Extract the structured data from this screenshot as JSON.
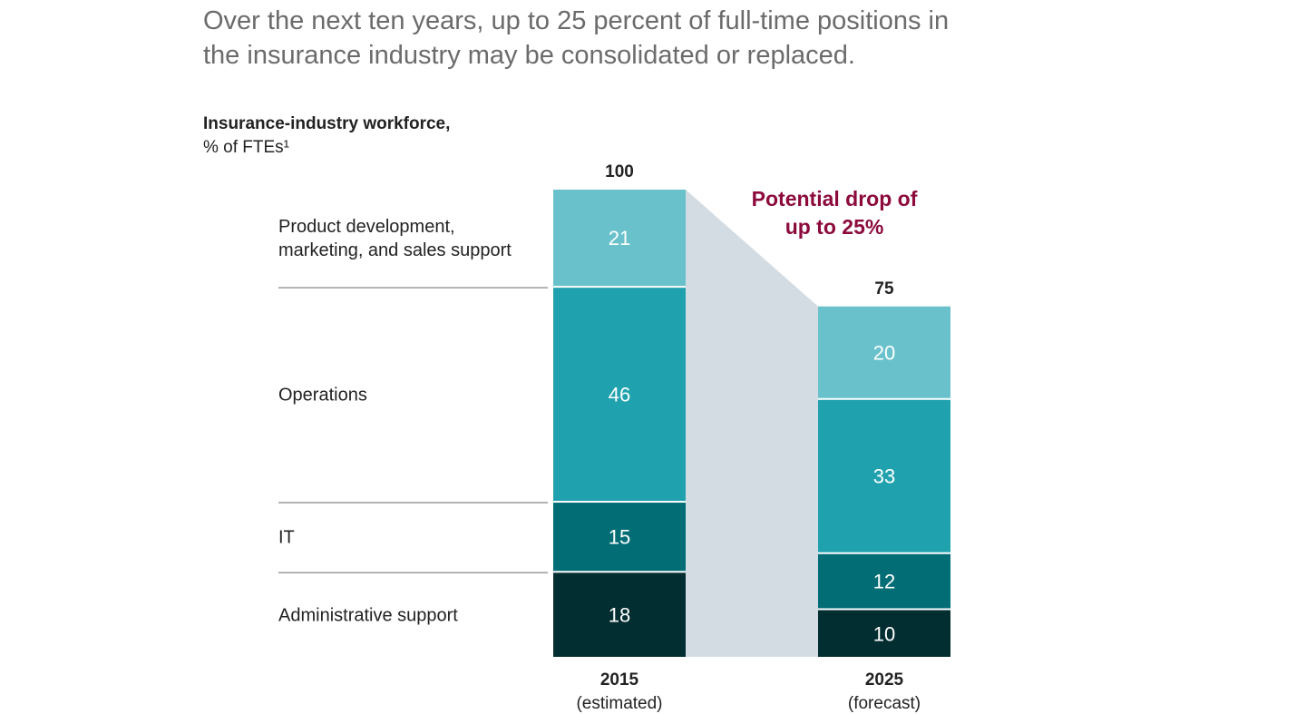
{
  "headline": {
    "line1": "Over the next ten years, up to 25 percent of full-time positions in",
    "line2": "the insurance industry may be consolidated or replaced."
  },
  "unit_title": {
    "bold": "Insurance-industry workforce,",
    "normal": "% of FTEs¹"
  },
  "callout": {
    "line1": "Potential drop of",
    "line2": "up to 25%",
    "color": "#8c0a3c"
  },
  "colors": {
    "product": "#69c2cb",
    "operations": "#20a2ae",
    "it": "#036d76",
    "admin": "#032e31",
    "connector": "#d4dce3",
    "divider": "#9a9a9a"
  },
  "chart_data": {
    "type": "bar",
    "stacked": true,
    "categories": [
      "2015\n(estimated)",
      "2025\n(forecast)"
    ],
    "category_lines": [
      [
        "2015",
        "(estimated)"
      ],
      [
        "2025",
        "(forecast)"
      ]
    ],
    "totals": [
      100,
      75
    ],
    "series": [
      {
        "name": "Administrative support",
        "values": [
          18,
          10
        ],
        "label_lines": [
          "Administrative support"
        ]
      },
      {
        "name": "IT",
        "values": [
          15,
          12
        ],
        "label_lines": [
          "IT"
        ]
      },
      {
        "name": "Operations",
        "values": [
          46,
          33
        ],
        "label_lines": [
          "Operations"
        ]
      },
      {
        "name": "Product development, marketing, and sales support",
        "values": [
          21,
          20
        ],
        "label_lines": [
          "Product development,",
          "marketing, and sales support"
        ]
      }
    ],
    "ylim": [
      0,
      100
    ]
  }
}
